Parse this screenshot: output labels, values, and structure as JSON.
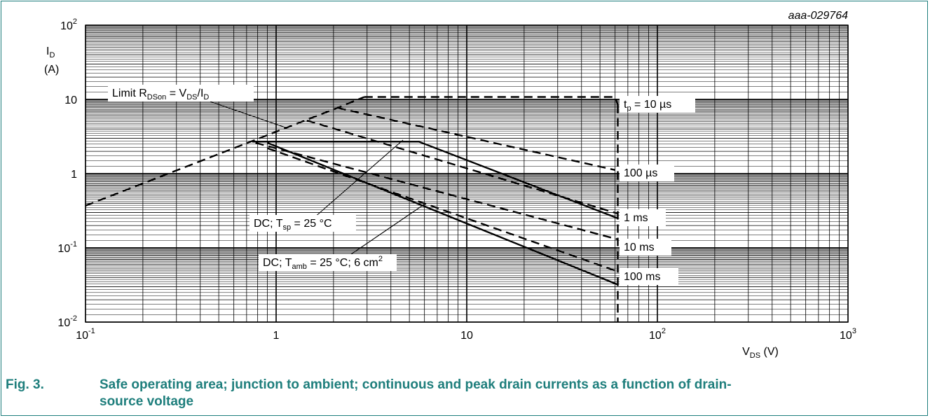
{
  "figure": {
    "number": "Fig. 3.",
    "caption_line1": "Safe operating area; junction to ambient; continuous and peak drain currents as a function of drain-",
    "caption_line2": "source voltage",
    "id_code": "aaa-029764"
  },
  "colors": {
    "caption": "#1e7e7c",
    "grid": "#000000",
    "curve": "#000000"
  },
  "chart_data": {
    "type": "line",
    "x_scale": "log",
    "y_scale": "log",
    "xlim": [
      0.1,
      1000
    ],
    "ylim": [
      0.01,
      100
    ],
    "xlabel": {
      "main": "V",
      "sub": "DS",
      "rest": " (V)"
    },
    "ylabel": {
      "main": "I",
      "sub": "D",
      "unit": "(A)"
    },
    "x_ticks": [
      {
        "value": 0.1,
        "base": "10",
        "exp": "-1",
        "plain": ""
      },
      {
        "value": 1,
        "base": "",
        "exp": "",
        "plain": "1"
      },
      {
        "value": 10,
        "base": "",
        "exp": "",
        "plain": "10"
      },
      {
        "value": 100,
        "base": "10",
        "exp": "2",
        "plain": ""
      },
      {
        "value": 1000,
        "base": "10",
        "exp": "3",
        "plain": ""
      }
    ],
    "y_ticks": [
      {
        "value": 100,
        "base": "10",
        "exp": "2",
        "plain": ""
      },
      {
        "value": 10,
        "base": "",
        "exp": "",
        "plain": "10"
      },
      {
        "value": 1,
        "base": "",
        "exp": "",
        "plain": "1"
      },
      {
        "value": 0.1,
        "base": "10",
        "exp": "-1",
        "plain": ""
      },
      {
        "value": 0.01,
        "base": "10",
        "exp": "-2",
        "plain": ""
      }
    ],
    "grid": true,
    "series": [
      {
        "name": "Limit RDSon = VDS/ID",
        "style": "dashed",
        "points": [
          [
            0.1,
            0.37
          ],
          [
            0.75,
            2.75
          ],
          [
            2.1,
            7.7
          ],
          [
            2.9,
            10.8
          ]
        ]
      },
      {
        "name": "tp = 10 µs",
        "style": "dashed",
        "points": [
          [
            2.9,
            10.8
          ],
          [
            5.5,
            10.8
          ],
          [
            60,
            10.8
          ],
          [
            62,
            8.5
          ]
        ]
      },
      {
        "name": "100 µs",
        "style": "dashed",
        "points": [
          [
            2.1,
            7.7
          ],
          [
            60,
            1.12
          ]
        ]
      },
      {
        "name": "1 ms",
        "style": "dashed",
        "points": [
          [
            1.45,
            5.2
          ],
          [
            62,
            0.29
          ]
        ]
      },
      {
        "name": "10 ms",
        "style": "dashed",
        "points": [
          [
            0.78,
            2.6
          ],
          [
            62,
            0.13
          ]
        ]
      },
      {
        "name": "100 ms",
        "style": "dashed",
        "points": [
          [
            0.9,
            2.2
          ],
          [
            62,
            0.048
          ]
        ]
      },
      {
        "name": "DC; Tsp = 25 °C",
        "style": "solid",
        "points": [
          [
            0.75,
            2.7
          ],
          [
            5.6,
            2.7
          ],
          [
            62,
            0.25
          ]
        ]
      },
      {
        "name": "DC; Tamb = 25 °C; 6 cm2",
        "style": "solid",
        "points": [
          [
            0.9,
            2.6
          ],
          [
            62,
            0.032
          ]
        ]
      },
      {
        "name": "VDS max",
        "style": "dashed",
        "points": [
          [
            62,
            8.5
          ],
          [
            62,
            0.01
          ]
        ]
      }
    ],
    "annotations": [
      {
        "id": "limit",
        "parts": [
          [
            "",
            "Limit R"
          ],
          [
            "sub",
            "DSon"
          ],
          [
            "",
            " = V"
          ],
          [
            "sub",
            "DS"
          ],
          [
            "",
            "/I"
          ],
          [
            "sub",
            "D"
          ]
        ]
      },
      {
        "id": "tp10us",
        "parts": [
          [
            "",
            "t"
          ],
          [
            "sub",
            "p"
          ],
          [
            "",
            " = 10 µs"
          ]
        ]
      },
      {
        "id": "100us",
        "parts": [
          [
            "",
            "100 µs"
          ]
        ]
      },
      {
        "id": "1ms",
        "parts": [
          [
            "",
            "1 ms"
          ]
        ]
      },
      {
        "id": "10ms",
        "parts": [
          [
            "",
            "10 ms"
          ]
        ]
      },
      {
        "id": "100ms",
        "parts": [
          [
            "",
            "100 ms"
          ]
        ]
      },
      {
        "id": "dc_tsp",
        "parts": [
          [
            "",
            "DC; T"
          ],
          [
            "sub",
            "sp"
          ],
          [
            "",
            " = 25 °C"
          ]
        ]
      },
      {
        "id": "dc_tamb",
        "parts": [
          [
            "",
            "DC; T"
          ],
          [
            "sub",
            "amb"
          ],
          [
            "",
            " = 25 °C; 6 cm"
          ],
          [
            "sup",
            "2"
          ]
        ]
      }
    ]
  }
}
